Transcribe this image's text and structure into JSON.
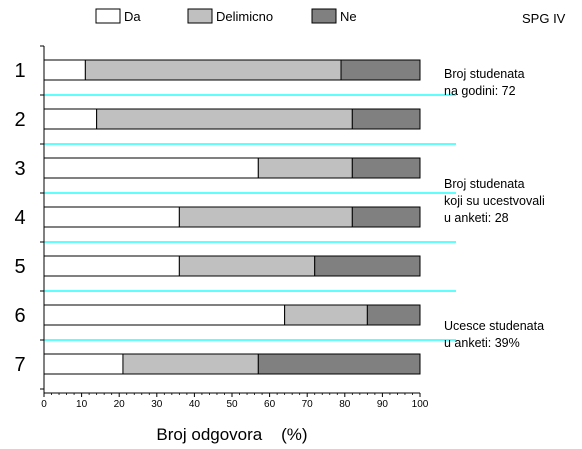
{
  "chart_data": {
    "type": "bar",
    "orientation": "horizontal",
    "stacked": true,
    "categories": [
      "1",
      "2",
      "3",
      "4",
      "5",
      "6",
      "7"
    ],
    "series": [
      {
        "name": "Da",
        "color": "#ffffff",
        "values": [
          11,
          14,
          57,
          36,
          36,
          64,
          21
        ]
      },
      {
        "name": "Delimicno",
        "color": "#c0c0c0",
        "values": [
          68,
          68,
          25,
          46,
          36,
          22,
          36
        ]
      },
      {
        "name": "Ne",
        "color": "#808080",
        "values": [
          21,
          18,
          18,
          18,
          28,
          14,
          43
        ]
      }
    ],
    "xlabel": "Broj odgovora    (%)",
    "xlim": [
      0,
      100
    ],
    "xticks": [
      "0",
      "10",
      "20",
      "30",
      "40",
      "50",
      "60",
      "70",
      "80",
      "90",
      "100"
    ],
    "legend_position": "top",
    "separator_color": "#00ffff",
    "corner_label": "SPG IV",
    "annotations": [
      [
        "Broj studenata",
        "na godini: 72"
      ],
      [
        "Broj studenata",
        "koji su ucestvovali",
        "u anketi: 28"
      ],
      [
        "Ucesce studenata",
        "u anketi: 39%"
      ]
    ]
  }
}
